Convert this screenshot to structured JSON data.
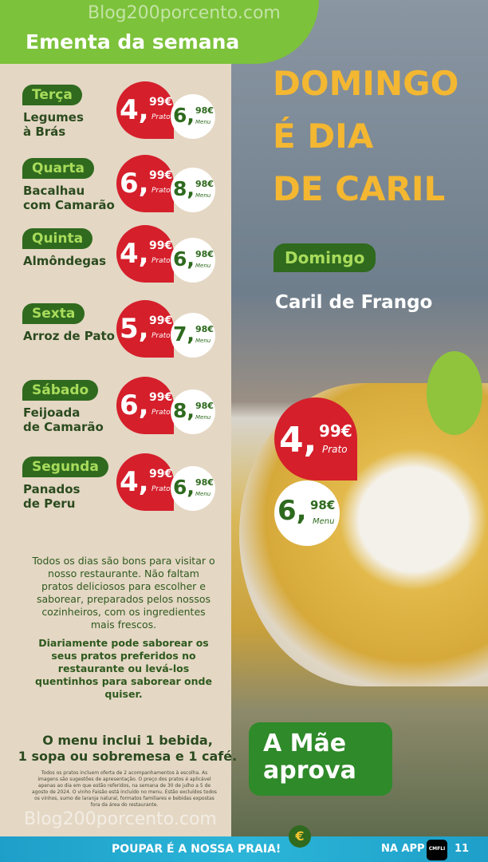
{
  "header": {
    "title": "Ementa da semana"
  },
  "watermark": "Blog200porcento.com",
  "days": [
    {
      "day": "Terça",
      "dish": [
        "Legumes",
        "à Brás"
      ],
      "prato_int": "4,",
      "prato_dec": "99€",
      "menu_int": "6,",
      "menu_dec": "98€"
    },
    {
      "day": "Quarta",
      "dish": [
        "Bacalhau",
        "com Camarão"
      ],
      "prato_int": "6,",
      "prato_dec": "99€",
      "menu_int": "8,",
      "menu_dec": "98€"
    },
    {
      "day": "Quinta",
      "dish": [
        "Almôndegas",
        ""
      ],
      "prato_int": "4,",
      "prato_dec": "99€",
      "menu_int": "6,",
      "menu_dec": "98€"
    },
    {
      "day": "Sexta",
      "dish": [
        "Arroz de Pato",
        ""
      ],
      "prato_int": "5,",
      "prato_dec": "99€",
      "menu_int": "7,",
      "menu_dec": "98€"
    },
    {
      "day": "Sábado",
      "dish": [
        "Feijoada",
        "de Camarão"
      ],
      "prato_int": "6,",
      "prato_dec": "99€",
      "menu_int": "8,",
      "menu_dec": "98€"
    },
    {
      "day": "Segunda",
      "dish": [
        "Panados",
        "de Peru"
      ],
      "prato_int": "4,",
      "prato_dec": "99€",
      "menu_int": "6,",
      "menu_dec": "98€"
    }
  ],
  "labels": {
    "prato": "Prato",
    "menu": "Menu"
  },
  "intro": "Todos os dias são bons para visitar o nosso restaurante. Não faltam pratos deliciosos para escolher e saborear, preparados pelos nossos cozinheiros, com os ingredientes mais frescos.",
  "intro_bold": "Diariamente pode saborear os seus pratos preferidos no restaurante ou levá-los quentinhos para saborear onde quiser.",
  "menu_includes": [
    "O menu inclui 1 bebida,",
    "1 sopa ou sobremesa e 1 café."
  ],
  "fine_print": "Todos os pratos incluem oferta de 2 acompanhamentos à escolha. As imagens são sugestões de apresentação. O preço dos pratos é aplicável apenas ao dia em que estão referidos, na semana de 30 de julho a 5 de agosto de 2024. O vinho Faisão está incluído no menu. Estão excluídos todos os vinhos, sumo de laranja natural, formatos familiares e bebidas expostas fora da área do restaurante.",
  "feature": {
    "headline": [
      "DOMINGO",
      "É DIA",
      "DE CARIL"
    ],
    "day": "Domingo",
    "dish": "Caril de Frango",
    "prato_int": "4,",
    "prato_dec": "99€",
    "menu_int": "6,",
    "menu_dec": "98€"
  },
  "badge": [
    "A Mãe",
    "aprova"
  ],
  "footer": {
    "slogan": "POUPAR É A NOSSA PRAIA!",
    "app": "NA APP",
    "app_logo": "CMFLI",
    "page": "11"
  },
  "colors": {
    "green_dark": "#2f6a1e",
    "green_light": "#7cc23a",
    "red": "#d51f2b",
    "yellow": "#f4b731",
    "beige": "#e4d7c4",
    "blue": "#1e9fc9"
  }
}
